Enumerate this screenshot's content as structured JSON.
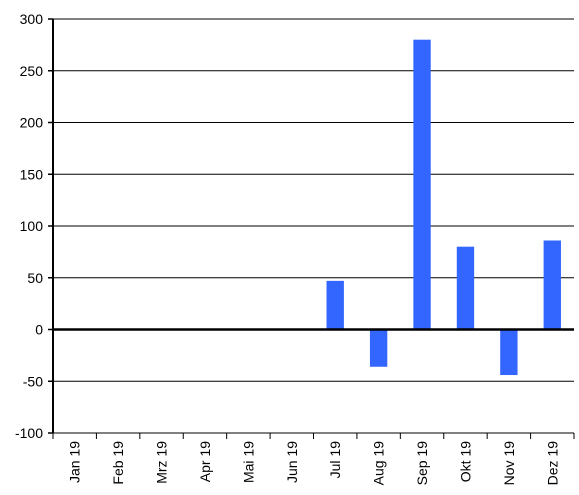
{
  "chart_data": {
    "type": "bar",
    "title": "",
    "xlabel": "",
    "ylabel": "",
    "categories": [
      "Jan 19",
      "Feb 19",
      "Mrz 19",
      "Apr 19",
      "Mai 19",
      "Jun 19",
      "Jul 19",
      "Aug 19",
      "Sep 19",
      "Okt 19",
      "Nov 19",
      "Dez 19"
    ],
    "values": [
      0,
      0,
      0,
      0,
      0,
      0,
      47,
      -36,
      280,
      80,
      -44,
      86
    ],
    "ylim": [
      -100,
      300
    ],
    "yticks": [
      -100,
      -50,
      0,
      50,
      100,
      150,
      200,
      250,
      300
    ],
    "ytick_labels": [
      "-100",
      "-50",
      "0",
      "50",
      "100",
      "150",
      "200",
      "250",
      "300"
    ],
    "grid": true,
    "legend": "none",
    "bar_color": "#3366ff"
  }
}
